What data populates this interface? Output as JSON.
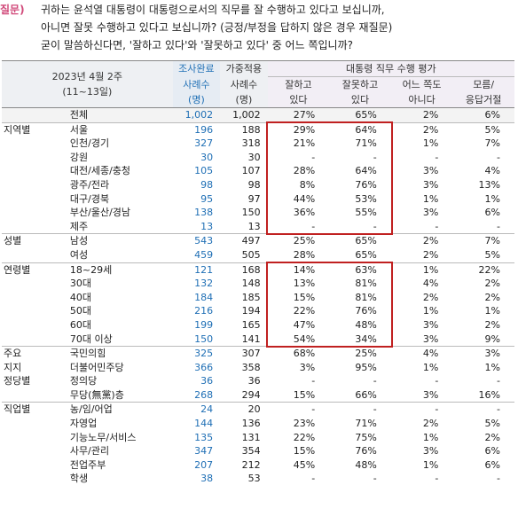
{
  "question": {
    "tag": "질문)",
    "lines": [
      "귀하는 윤석열 대통령이 대통령으로서의 직무를 잘 수행하고 있다고 보십니까,",
      "아니면 잘못 수행하고 있다고 보십니까? (긍정/부정을 답하지 않은 경우 재질문)",
      "굳이 말씀하신다면, '잘하고 있다'와 '잘못하고 있다' 중 어느 쪽입니까?"
    ]
  },
  "header": {
    "date": "2023년 4월 2주",
    "range": "(11~13일)",
    "col_survey_top": "조사완료",
    "col_weight_top": "가중적용",
    "col_n": "사례수",
    "col_unit": "(명)",
    "group_title": "대통령 직무 수행 평가",
    "col_good_1": "잘하고",
    "col_good_2": "있다",
    "col_bad_1": "잘못하고",
    "col_bad_2": "있다",
    "col_neither_1": "어느 쪽도",
    "col_neither_2": "아니다",
    "col_dk_1": "모름/",
    "col_dk_2": "응답거절"
  },
  "rows": [
    {
      "group": "",
      "label": "전체",
      "n1": "1,002",
      "n2": "1,002",
      "good": "27%",
      "bad": "65%",
      "neither": "2%",
      "dk": "6%",
      "cls": "total"
    },
    {
      "group": "지역별",
      "label": "서울",
      "n1": "196",
      "n2": "188",
      "good": "29%",
      "bad": "64%",
      "neither": "2%",
      "dk": "5%",
      "cls": "sep"
    },
    {
      "group": "",
      "label": "인천/경기",
      "n1": "327",
      "n2": "318",
      "good": "21%",
      "bad": "71%",
      "neither": "1%",
      "dk": "7%"
    },
    {
      "group": "",
      "label": "강원",
      "n1": "30",
      "n2": "30",
      "good": "-",
      "bad": "-",
      "neither": "-",
      "dk": "-"
    },
    {
      "group": "",
      "label": "대전/세종/충청",
      "n1": "105",
      "n2": "107",
      "good": "28%",
      "bad": "64%",
      "neither": "3%",
      "dk": "4%"
    },
    {
      "group": "",
      "label": "광주/전라",
      "n1": "98",
      "n2": "98",
      "good": "8%",
      "bad": "76%",
      "neither": "3%",
      "dk": "13%"
    },
    {
      "group": "",
      "label": "대구/경북",
      "n1": "95",
      "n2": "97",
      "good": "44%",
      "bad": "53%",
      "neither": "1%",
      "dk": "1%"
    },
    {
      "group": "",
      "label": "부산/울산/경남",
      "n1": "138",
      "n2": "150",
      "good": "36%",
      "bad": "55%",
      "neither": "3%",
      "dk": "6%"
    },
    {
      "group": "",
      "label": "제주",
      "n1": "13",
      "n2": "13",
      "good": "-",
      "bad": "-",
      "neither": "-",
      "dk": "-"
    },
    {
      "group": "성별",
      "label": "남성",
      "n1": "543",
      "n2": "497",
      "good": "25%",
      "bad": "65%",
      "neither": "2%",
      "dk": "7%",
      "cls": "sep"
    },
    {
      "group": "",
      "label": "여성",
      "n1": "459",
      "n2": "505",
      "good": "28%",
      "bad": "65%",
      "neither": "2%",
      "dk": "5%"
    },
    {
      "group": "연령별",
      "label": "18~29세",
      "n1": "121",
      "n2": "168",
      "good": "14%",
      "bad": "63%",
      "neither": "1%",
      "dk": "22%",
      "cls": "sep"
    },
    {
      "group": "",
      "label": "30대",
      "n1": "132",
      "n2": "148",
      "good": "13%",
      "bad": "81%",
      "neither": "4%",
      "dk": "2%"
    },
    {
      "group": "",
      "label": "40대",
      "n1": "184",
      "n2": "185",
      "good": "15%",
      "bad": "81%",
      "neither": "2%",
      "dk": "2%"
    },
    {
      "group": "",
      "label": "50대",
      "n1": "216",
      "n2": "194",
      "good": "22%",
      "bad": "76%",
      "neither": "1%",
      "dk": "1%"
    },
    {
      "group": "",
      "label": "60대",
      "n1": "199",
      "n2": "165",
      "good": "47%",
      "bad": "48%",
      "neither": "3%",
      "dk": "2%"
    },
    {
      "group": "",
      "label": "70대 이상",
      "n1": "150",
      "n2": "141",
      "good": "54%",
      "bad": "34%",
      "neither": "3%",
      "dk": "9%"
    },
    {
      "group": "주요",
      "label": "국민의힘",
      "n1": "325",
      "n2": "307",
      "good": "68%",
      "bad": "25%",
      "neither": "4%",
      "dk": "3%",
      "cls": "sep"
    },
    {
      "group": "지지",
      "label": "더불어민주당",
      "n1": "366",
      "n2": "358",
      "good": "3%",
      "bad": "95%",
      "neither": "1%",
      "dk": "1%"
    },
    {
      "group": "정당별",
      "label": "정의당",
      "n1": "36",
      "n2": "36",
      "good": "-",
      "bad": "-",
      "neither": "-",
      "dk": "-"
    },
    {
      "group": "",
      "label": "무당(無黨)층",
      "n1": "268",
      "n2": "294",
      "good": "15%",
      "bad": "66%",
      "neither": "3%",
      "dk": "16%"
    },
    {
      "group": "직업별",
      "label": "농/임/어업",
      "n1": "24",
      "n2": "20",
      "good": "-",
      "bad": "-",
      "neither": "-",
      "dk": "-",
      "cls": "sep"
    },
    {
      "group": "",
      "label": "자영업",
      "n1": "144",
      "n2": "136",
      "good": "23%",
      "bad": "71%",
      "neither": "2%",
      "dk": "5%"
    },
    {
      "group": "",
      "label": "기능노무/서비스",
      "n1": "135",
      "n2": "131",
      "good": "22%",
      "bad": "75%",
      "neither": "1%",
      "dk": "2%"
    },
    {
      "group": "",
      "label": "사무/관리",
      "n1": "347",
      "n2": "354",
      "good": "15%",
      "bad": "76%",
      "neither": "3%",
      "dk": "6%"
    },
    {
      "group": "",
      "label": "전업주부",
      "n1": "207",
      "n2": "212",
      "good": "45%",
      "bad": "48%",
      "neither": "1%",
      "dk": "6%"
    },
    {
      "group": "",
      "label": "학생",
      "n1": "38",
      "n2": "53",
      "good": "-",
      "bad": "-",
      "neither": "-",
      "dk": "-"
    }
  ]
}
